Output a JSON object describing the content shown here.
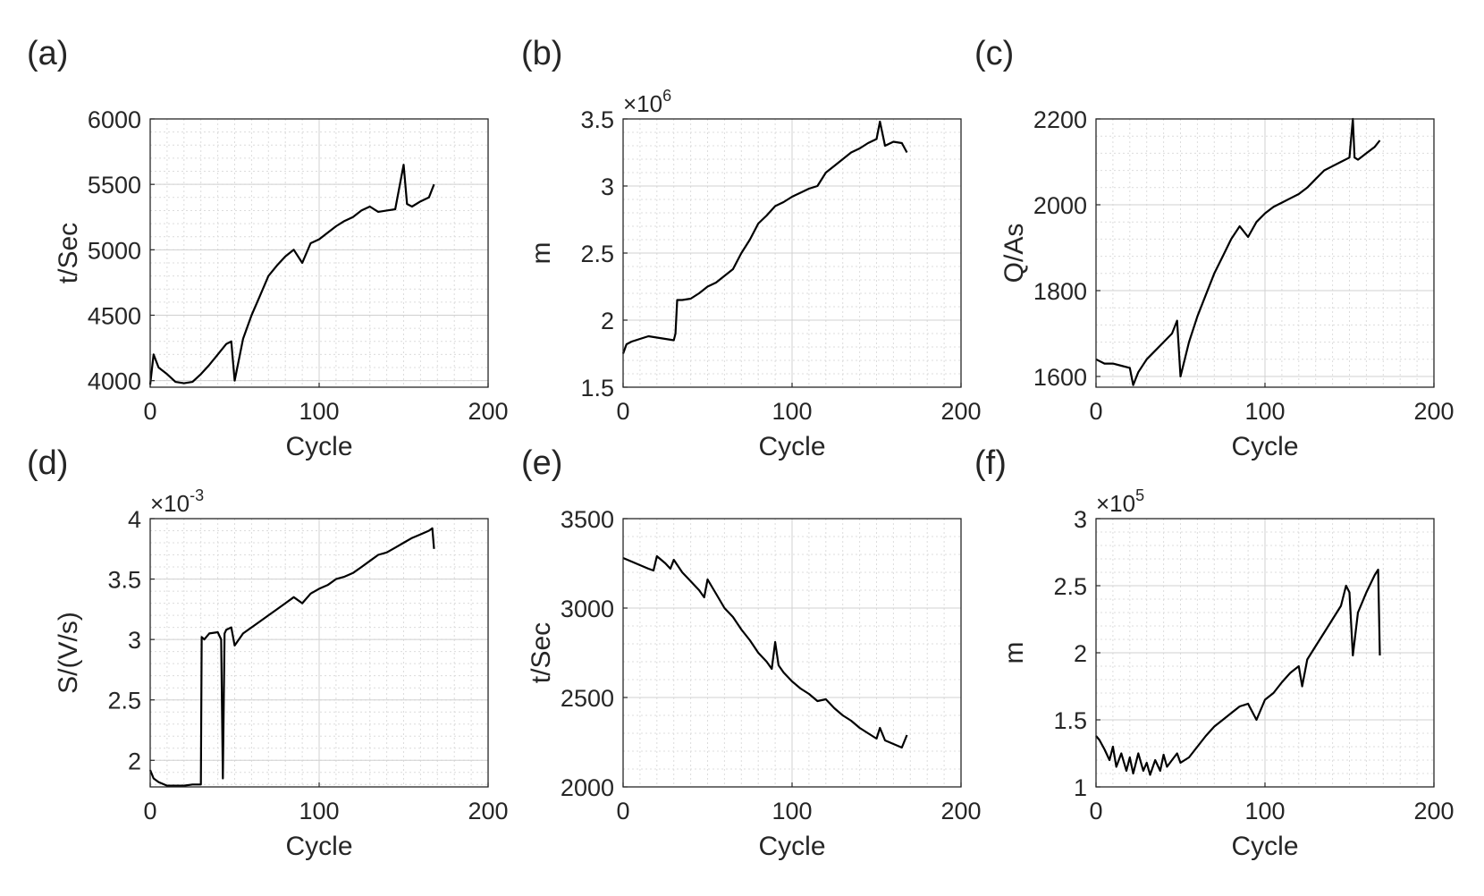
{
  "chart_data": [
    {
      "panel": "(a)",
      "type": "line",
      "xlabel": "Cycle",
      "ylabel": "t/Sec",
      "exponent": "",
      "xlim": [
        0,
        200
      ],
      "ylim": [
        3950,
        6000
      ],
      "xticks": [
        "0",
        "100",
        "200"
      ],
      "xtick_values": [
        0,
        100,
        200
      ],
      "yticks": [
        "4000",
        "4500",
        "5000",
        "5500",
        "6000"
      ],
      "ytick_values": [
        4000,
        4500,
        5000,
        5500,
        6000
      ],
      "series": [
        {
          "name": "t/Sec",
          "x": [
            0,
            2,
            5,
            10,
            15,
            20,
            25,
            30,
            35,
            40,
            45,
            48,
            50,
            55,
            60,
            65,
            70,
            75,
            80,
            85,
            90,
            95,
            100,
            105,
            110,
            115,
            120,
            125,
            130,
            135,
            140,
            145,
            150,
            152,
            155,
            160,
            165,
            168
          ],
          "y": [
            3970,
            4200,
            4100,
            4050,
            3990,
            3980,
            3990,
            4050,
            4120,
            4200,
            4280,
            4300,
            4000,
            4320,
            4500,
            4650,
            4800,
            4880,
            4950,
            5000,
            4900,
            5050,
            5080,
            5130,
            5180,
            5220,
            5250,
            5300,
            5330,
            5290,
            5300,
            5310,
            5650,
            5350,
            5330,
            5370,
            5400,
            5500
          ]
        }
      ]
    },
    {
      "panel": "(b)",
      "type": "line",
      "xlabel": "Cycle",
      "ylabel": "m",
      "exponent": "×10^6",
      "xlim": [
        0,
        200
      ],
      "ylim": [
        1.5,
        3.5
      ],
      "xticks": [
        "0",
        "100",
        "200"
      ],
      "xtick_values": [
        0,
        100,
        200
      ],
      "yticks": [
        "1.5",
        "2",
        "2.5",
        "3",
        "3.5"
      ],
      "ytick_values": [
        1.5,
        2,
        2.5,
        3,
        3.5
      ],
      "series": [
        {
          "name": "m",
          "x": [
            0,
            2,
            5,
            10,
            15,
            20,
            25,
            30,
            31,
            32,
            35,
            40,
            45,
            50,
            55,
            60,
            65,
            70,
            75,
            80,
            85,
            90,
            95,
            100,
            105,
            110,
            115,
            120,
            125,
            130,
            135,
            140,
            145,
            150,
            152,
            155,
            160,
            165,
            168
          ],
          "y": [
            1.75,
            1.82,
            1.84,
            1.86,
            1.88,
            1.87,
            1.86,
            1.85,
            1.9,
            2.15,
            2.15,
            2.16,
            2.2,
            2.25,
            2.28,
            2.33,
            2.38,
            2.5,
            2.6,
            2.72,
            2.78,
            2.85,
            2.88,
            2.92,
            2.95,
            2.98,
            3.0,
            3.1,
            3.15,
            3.2,
            3.25,
            3.28,
            3.32,
            3.35,
            3.48,
            3.3,
            3.33,
            3.32,
            3.25
          ]
        }
      ]
    },
    {
      "panel": "(c)",
      "type": "line",
      "xlabel": "Cycle",
      "ylabel": "Q/As",
      "exponent": "",
      "xlim": [
        0,
        200
      ],
      "ylim": [
        1575,
        2200
      ],
      "xticks": [
        "0",
        "100",
        "200"
      ],
      "xtick_values": [
        0,
        100,
        200
      ],
      "yticks": [
        "1600",
        "1800",
        "2000",
        "2200"
      ],
      "ytick_values": [
        1600,
        1800,
        2000,
        2200
      ],
      "series": [
        {
          "name": "Q/As",
          "x": [
            0,
            5,
            10,
            15,
            20,
            22,
            25,
            30,
            35,
            40,
            45,
            48,
            50,
            55,
            60,
            65,
            70,
            75,
            80,
            85,
            90,
            95,
            100,
            105,
            110,
            115,
            120,
            125,
            130,
            135,
            140,
            145,
            150,
            152,
            153,
            155,
            160,
            165,
            168
          ],
          "y": [
            1640,
            1630,
            1630,
            1625,
            1620,
            1580,
            1610,
            1640,
            1660,
            1680,
            1700,
            1730,
            1600,
            1680,
            1740,
            1790,
            1840,
            1880,
            1920,
            1950,
            1925,
            1960,
            1980,
            1995,
            2005,
            2015,
            2025,
            2040,
            2060,
            2080,
            2090,
            2100,
            2110,
            2200,
            2110,
            2105,
            2120,
            2135,
            2150
          ]
        }
      ]
    },
    {
      "panel": "(d)",
      "type": "line",
      "xlabel": "Cycle",
      "ylabel": "S/(V/s)",
      "exponent": "×10^-3",
      "xlim": [
        0,
        200
      ],
      "ylim": [
        1.78,
        4.0
      ],
      "xticks": [
        "0",
        "100",
        "200"
      ],
      "xtick_values": [
        0,
        100,
        200
      ],
      "yticks": [
        "2",
        "2.5",
        "3",
        "3.5",
        "4"
      ],
      "ytick_values": [
        2,
        2.5,
        3,
        3.5,
        4
      ],
      "series": [
        {
          "name": "S/(V/s)",
          "x": [
            0,
            2,
            5,
            10,
            15,
            20,
            25,
            28,
            30,
            30.5,
            32,
            35,
            40,
            42,
            43,
            44,
            45,
            48,
            50,
            55,
            60,
            65,
            70,
            75,
            80,
            85,
            90,
            95,
            100,
            105,
            110,
            115,
            120,
            125,
            130,
            135,
            140,
            145,
            150,
            155,
            160,
            165,
            167,
            168
          ],
          "y": [
            1.92,
            1.85,
            1.82,
            1.79,
            1.79,
            1.79,
            1.8,
            1.8,
            1.8,
            3.02,
            3.0,
            3.05,
            3.06,
            3.0,
            1.85,
            3.05,
            3.08,
            3.1,
            2.95,
            3.05,
            3.1,
            3.15,
            3.2,
            3.25,
            3.3,
            3.35,
            3.3,
            3.38,
            3.42,
            3.45,
            3.5,
            3.52,
            3.55,
            3.6,
            3.65,
            3.7,
            3.72,
            3.76,
            3.8,
            3.84,
            3.87,
            3.9,
            3.92,
            3.75
          ]
        }
      ]
    },
    {
      "panel": "(e)",
      "type": "line",
      "xlabel": "Cycle",
      "ylabel": "t/Sec",
      "exponent": "",
      "xlim": [
        0,
        200
      ],
      "ylim": [
        2000,
        3500
      ],
      "xticks": [
        "0",
        "100",
        "200"
      ],
      "xtick_values": [
        0,
        100,
        200
      ],
      "yticks": [
        "2000",
        "2500",
        "3000",
        "3500"
      ],
      "ytick_values": [
        2000,
        2500,
        3000,
        3500
      ],
      "series": [
        {
          "name": "t/Sec",
          "x": [
            0,
            5,
            10,
            15,
            18,
            20,
            25,
            28,
            30,
            35,
            40,
            45,
            48,
            50,
            55,
            60,
            65,
            70,
            75,
            80,
            85,
            88,
            90,
            92,
            95,
            100,
            105,
            110,
            115,
            120,
            125,
            130,
            135,
            140,
            145,
            150,
            152,
            155,
            160,
            165,
            168
          ],
          "y": [
            3280,
            3260,
            3240,
            3220,
            3210,
            3290,
            3250,
            3220,
            3270,
            3200,
            3150,
            3100,
            3060,
            3160,
            3080,
            3000,
            2950,
            2880,
            2820,
            2750,
            2700,
            2660,
            2810,
            2680,
            2640,
            2590,
            2550,
            2520,
            2480,
            2490,
            2440,
            2400,
            2370,
            2330,
            2300,
            2270,
            2330,
            2260,
            2240,
            2220,
            2290
          ]
        }
      ]
    },
    {
      "panel": "(f)",
      "type": "line",
      "xlabel": "Cycle",
      "ylabel": "m",
      "exponent": "×10^5",
      "xlim": [
        0,
        200
      ],
      "ylim": [
        1.0,
        3.0
      ],
      "xticks": [
        "0",
        "100",
        "200"
      ],
      "xtick_values": [
        0,
        100,
        200
      ],
      "yticks": [
        "1",
        "1.5",
        "2",
        "2.5",
        "3"
      ],
      "ytick_values": [
        1,
        1.5,
        2,
        2.5,
        3
      ],
      "series": [
        {
          "name": "m",
          "x": [
            0,
            2,
            5,
            8,
            10,
            12,
            15,
            18,
            20,
            22,
            25,
            28,
            30,
            32,
            35,
            38,
            40,
            42,
            45,
            48,
            50,
            55,
            60,
            65,
            70,
            75,
            80,
            85,
            90,
            95,
            100,
            105,
            110,
            115,
            120,
            122,
            125,
            130,
            135,
            140,
            145,
            148,
            150,
            152,
            155,
            160,
            165,
            167,
            168
          ],
          "y": [
            1.38,
            1.35,
            1.28,
            1.2,
            1.3,
            1.15,
            1.25,
            1.12,
            1.22,
            1.1,
            1.25,
            1.12,
            1.18,
            1.09,
            1.2,
            1.12,
            1.24,
            1.15,
            1.2,
            1.25,
            1.18,
            1.22,
            1.3,
            1.38,
            1.45,
            1.5,
            1.55,
            1.6,
            1.62,
            1.5,
            1.65,
            1.7,
            1.78,
            1.85,
            1.9,
            1.75,
            1.95,
            2.05,
            2.15,
            2.25,
            2.35,
            2.5,
            2.45,
            1.98,
            2.3,
            2.45,
            2.58,
            2.62,
            1.98
          ]
        }
      ]
    }
  ]
}
